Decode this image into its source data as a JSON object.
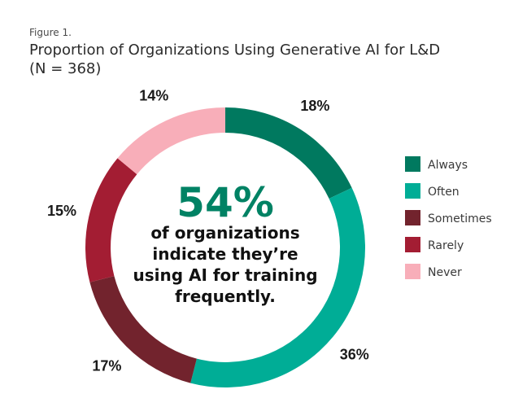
{
  "figure_label": "Figure 1.",
  "chart_data": {
    "type": "pie",
    "title": "Proportion of Organizations Using Generative AI for L&D",
    "subtitle": "(N = 368)",
    "legend_position": "right",
    "slices": [
      {
        "label": "Always",
        "value": 18,
        "display": "18%",
        "color": "#00795f"
      },
      {
        "label": "Often",
        "value": 36,
        "display": "36%",
        "color": "#00ad96"
      },
      {
        "label": "Sometimes",
        "value": 17,
        "display": "17%",
        "color": "#72232d"
      },
      {
        "label": "Rarely",
        "value": 15,
        "display": "15%",
        "color": "#a31d33"
      },
      {
        "label": "Never",
        "value": 14,
        "display": "14%",
        "color": "#f8aeb9"
      }
    ],
    "center_annotation": {
      "value": "54%",
      "lines": [
        "of organizations",
        "indicate they’re",
        "using AI for training",
        "frequently."
      ]
    }
  }
}
